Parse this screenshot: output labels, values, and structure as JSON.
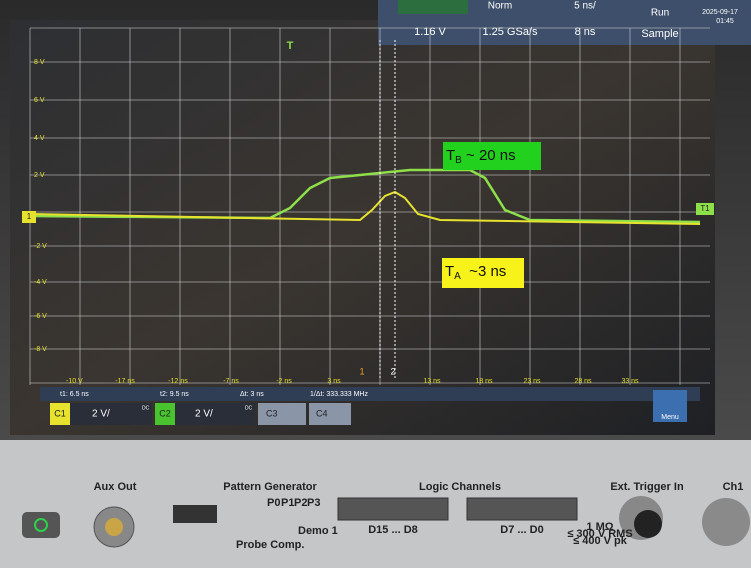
{
  "status_bar": {
    "trigger_mode": "Norm",
    "timebase": "5 ns/",
    "run_state": "Run",
    "date": "2025-09-17",
    "time": "01:45",
    "trigger_level": "1.16 V",
    "sample_rate": "1.25 GSa/s",
    "delay": "8 ns",
    "acquisition": "Sample"
  },
  "y_axis_labels": [
    "8 V",
    "6 V",
    "4 V",
    "2 V",
    "-2 V",
    "-4 V",
    "-6 V",
    "-8 V",
    "-10 V"
  ],
  "x_axis_labels": [
    "-17 ns",
    "-12 ns",
    "-7 ns",
    "-2 ns",
    "3 ns",
    "13 ns",
    "18 ns",
    "23 ns",
    "28 ns",
    "33 ns"
  ],
  "markers": {
    "channel1": "1",
    "trigger_ref": "T1",
    "cursor1": "1",
    "cursor2": "2",
    "trigger": "T"
  },
  "annotations": [
    {
      "base": "T",
      "subscript": "B",
      "rest": " ~ 20 ns"
    },
    {
      "base": "T",
      "subscript": "A",
      "rest": "  ~3 ns"
    }
  ],
  "cursor_readout": {
    "t1": "t1: 6.5 ns",
    "t2": "t2: 9.5 ns",
    "delta": "Δt: 3 ns",
    "inverse": "1/Δt: 333.333 MHz"
  },
  "channels": [
    {
      "name": "C1",
      "scale": "2 V/",
      "coupling": "DC"
    },
    {
      "name": "C2",
      "scale": "2 V/",
      "coupling": "DC"
    },
    {
      "name": "C3"
    },
    {
      "name": "C4"
    }
  ],
  "menu": "Menu",
  "front_panel": {
    "aux_out": "Aux Out",
    "pattern_generator": "Pattern Generator",
    "pins": [
      "P0",
      "P1",
      "P2",
      "P3"
    ],
    "probe_comp": "Probe Comp.",
    "demo": "Demo 1",
    "logic_channels": "Logic Channels",
    "logic_high": "D15 ... D8",
    "logic_low": "D7 ... D0",
    "ext_trigger": "Ext. Trigger In",
    "ratings": [
      "1 MΩ",
      "≤ 300 V RMS",
      "≤ 400 V pk"
    ],
    "ch1": "Ch1"
  }
}
